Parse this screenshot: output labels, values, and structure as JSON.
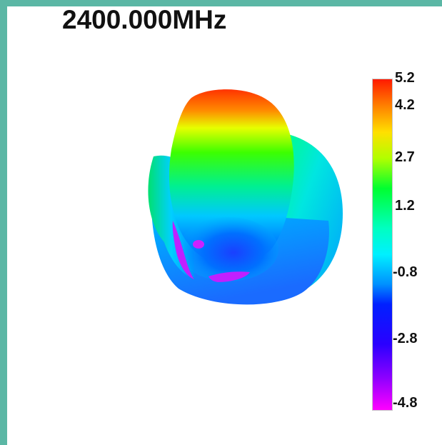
{
  "chart_data": {
    "type": "3d-radiation-pattern",
    "title": "2400.000MHz",
    "colorbar": {
      "min": -4.8,
      "max": 5.2,
      "ticks": [
        5.2,
        4.2,
        2.7,
        1.2,
        -0.8,
        -2.8,
        -4.8
      ],
      "tick_labels": [
        "5.2",
        "4.2",
        "2.7",
        "1.2",
        "-0.8",
        "-2.8",
        "-4.8"
      ],
      "colormap": [
        "#ff1a00",
        "#ffb000",
        "#e8ff00",
        "#00ff3a",
        "#00ffff",
        "#0040ff",
        "#1a00ff",
        "#7a00ff",
        "#ff00ff"
      ]
    }
  },
  "colors": {
    "frame": "#5bb7a5",
    "background": "#ffffff",
    "text": "#111111"
  }
}
